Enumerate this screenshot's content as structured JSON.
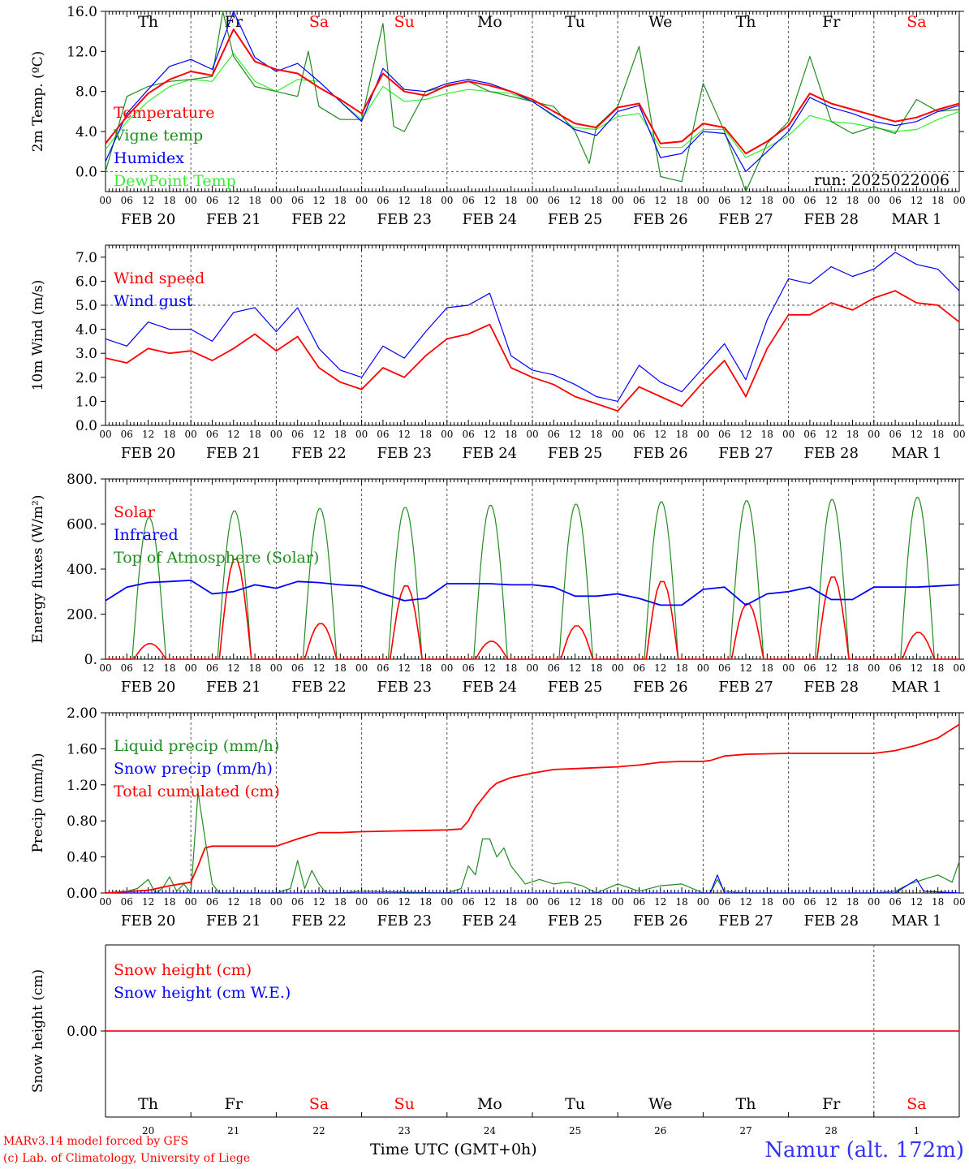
{
  "colors": {
    "red": "#ff0000",
    "green": "#228b22",
    "blue": "#0000ff",
    "lightgreen": "#33ee33",
    "axis": "#000000"
  },
  "days": [
    "Th",
    "Fr",
    "Sa",
    "Su",
    "Mo",
    "Tu",
    "We",
    "Th",
    "Fr",
    "Sa"
  ],
  "weekend_days": [
    "Sa",
    "Su"
  ],
  "dates": [
    "FEB 20",
    "FEB 21",
    "FEB 22",
    "FEB 23",
    "FEB 24",
    "FEB 25",
    "FEB 26",
    "FEB 27",
    "FEB 28",
    "MAR  1"
  ],
  "hour_ticks": [
    "00",
    "06",
    "12",
    "18"
  ],
  "day_numbers": [
    "20",
    "21",
    "22",
    "23",
    "24",
    "25",
    "26",
    "27",
    "28",
    "1"
  ],
  "footer": {
    "credit1": "MARv3.14 model forced by GFS",
    "credit2": "(c) Lab. of Climatology, University of Liege",
    "xlabel": "Time UTC (GMT+0h)",
    "station": "Namur (alt. 172m)"
  },
  "chart_data": [
    {
      "type": "line",
      "ylabel": "2m Temp. (ºC)",
      "ylim": [
        -2,
        16
      ],
      "yticks": [
        "0.0",
        "4.0",
        "8.0",
        "12.0",
        "16.0"
      ],
      "run_label": "run: 2025022006",
      "x_unit": "hours since FEB 20 00 UTC",
      "series": [
        {
          "name": "Temperature",
          "color": "#ff0000",
          "x": [
            0,
            6,
            12,
            18,
            24,
            30,
            36,
            42,
            48,
            54,
            60,
            66,
            72,
            78,
            84,
            90,
            96,
            102,
            108,
            114,
            120,
            126,
            132,
            138,
            144,
            150,
            156,
            162,
            168,
            174,
            180,
            186,
            192,
            198,
            204,
            210,
            216,
            222,
            228,
            234,
            240
          ],
          "values": [
            2.8,
            5.5,
            7.8,
            9.2,
            10.0,
            9.6,
            14.2,
            11.0,
            10.2,
            9.8,
            8.4,
            7.2,
            5.8,
            9.8,
            8.0,
            7.6,
            8.6,
            9.0,
            8.6,
            8.0,
            7.2,
            6.0,
            4.8,
            4.4,
            6.4,
            6.8,
            2.8,
            3.0,
            4.8,
            4.4,
            1.8,
            3.0,
            4.6,
            7.8,
            6.8,
            6.2,
            5.6,
            5.0,
            5.4,
            6.2,
            6.8
          ]
        },
        {
          "name": "Vigne temp",
          "color": "#228b22",
          "x": [
            0,
            6,
            12,
            18,
            24,
            30,
            33,
            36,
            42,
            48,
            54,
            57,
            60,
            66,
            72,
            78,
            81,
            84,
            90,
            96,
            102,
            108,
            114,
            120,
            126,
            132,
            136,
            138,
            144,
            150,
            156,
            162,
            168,
            174,
            180,
            186,
            192,
            198,
            204,
            210,
            216,
            222,
            228,
            234,
            240
          ],
          "values": [
            0.0,
            7.5,
            8.5,
            9.0,
            9.2,
            9.5,
            16.0,
            11.5,
            8.5,
            8.0,
            7.5,
            12.0,
            6.5,
            5.2,
            5.2,
            14.8,
            4.5,
            4.0,
            8.0,
            8.5,
            9.0,
            8.0,
            7.5,
            7.0,
            6.5,
            4.0,
            0.8,
            4.5,
            6.5,
            12.5,
            -0.5,
            -1.0,
            8.8,
            4.0,
            -2.0,
            2.8,
            5.0,
            11.5,
            5.0,
            3.8,
            4.5,
            3.8,
            7.2,
            6.0,
            6.2
          ]
        },
        {
          "name": "Humidex",
          "color": "#0000ff",
          "x": [
            0,
            6,
            12,
            18,
            24,
            30,
            36,
            42,
            48,
            54,
            60,
            66,
            72,
            78,
            84,
            90,
            96,
            102,
            108,
            114,
            120,
            126,
            132,
            138,
            144,
            150,
            156,
            162,
            168,
            174,
            180,
            186,
            192,
            198,
            204,
            210,
            216,
            222,
            228,
            234,
            240
          ],
          "values": [
            1.0,
            5.8,
            8.2,
            10.5,
            11.2,
            10.2,
            16.0,
            11.4,
            10.0,
            10.8,
            9.0,
            7.0,
            5.0,
            10.3,
            8.2,
            8.0,
            8.8,
            9.2,
            8.8,
            8.0,
            7.0,
            5.6,
            4.2,
            3.6,
            6.0,
            6.6,
            1.4,
            1.8,
            4.0,
            3.8,
            0.0,
            2.0,
            4.0,
            7.4,
            6.4,
            5.8,
            5.0,
            4.6,
            5.0,
            6.0,
            6.6
          ]
        },
        {
          "name": "DewPoint Temp",
          "color": "#33ee33",
          "x": [
            0,
            6,
            12,
            18,
            24,
            30,
            36,
            42,
            48,
            54,
            60,
            66,
            72,
            78,
            84,
            90,
            96,
            102,
            108,
            114,
            120,
            126,
            132,
            138,
            144,
            150,
            156,
            162,
            168,
            174,
            180,
            186,
            192,
            198,
            204,
            210,
            216,
            222,
            228,
            234,
            240
          ],
          "values": [
            2.2,
            5.0,
            7.0,
            8.5,
            9.2,
            9.0,
            11.8,
            9.0,
            8.0,
            9.2,
            9.0,
            7.0,
            5.2,
            8.5,
            7.0,
            7.2,
            7.8,
            8.2,
            8.0,
            7.8,
            7.0,
            5.5,
            4.4,
            4.2,
            5.5,
            5.8,
            2.4,
            2.4,
            4.2,
            4.2,
            1.4,
            2.4,
            3.6,
            5.6,
            5.0,
            4.8,
            4.4,
            4.0,
            4.2,
            5.2,
            6.0
          ]
        }
      ],
      "ref_line": 0
    },
    {
      "type": "line",
      "ylabel": "10m Wind (m/s)",
      "ylim": [
        0,
        7.5
      ],
      "yticks": [
        "0.0",
        "1.0",
        "2.0",
        "3.0",
        "4.0",
        "5.0",
        "6.0",
        "7.0"
      ],
      "x_unit": "hours since FEB 20 00 UTC",
      "series": [
        {
          "name": "Wind speed",
          "color": "#ff0000",
          "x": [
            0,
            6,
            12,
            18,
            24,
            30,
            36,
            42,
            48,
            54,
            60,
            66,
            72,
            78,
            84,
            90,
            96,
            102,
            108,
            114,
            120,
            126,
            132,
            138,
            144,
            150,
            156,
            162,
            168,
            174,
            180,
            186,
            192,
            198,
            204,
            210,
            216,
            222,
            228,
            234,
            240
          ],
          "values": [
            2.8,
            2.6,
            3.2,
            3.0,
            3.1,
            2.7,
            3.2,
            3.8,
            3.1,
            3.7,
            2.4,
            1.8,
            1.5,
            2.4,
            2.0,
            2.9,
            3.6,
            3.8,
            4.2,
            2.4,
            2.0,
            1.7,
            1.2,
            0.9,
            0.6,
            1.6,
            1.2,
            0.8,
            1.8,
            2.7,
            1.2,
            3.2,
            4.6,
            4.6,
            5.1,
            4.8,
            5.3,
            5.6,
            5.1,
            5.0,
            4.3
          ]
        },
        {
          "name": "Wind gust",
          "color": "#0000ff",
          "x": [
            0,
            6,
            12,
            18,
            24,
            30,
            36,
            42,
            48,
            54,
            60,
            66,
            72,
            78,
            84,
            90,
            96,
            102,
            108,
            114,
            120,
            126,
            132,
            138,
            144,
            150,
            156,
            162,
            168,
            174,
            180,
            186,
            192,
            198,
            204,
            210,
            216,
            222,
            228,
            234,
            240
          ],
          "values": [
            3.6,
            3.3,
            4.3,
            4.0,
            4.0,
            3.5,
            4.7,
            4.9,
            3.9,
            4.9,
            3.2,
            2.3,
            2.0,
            3.3,
            2.8,
            3.9,
            4.9,
            5.0,
            5.5,
            2.9,
            2.3,
            2.1,
            1.7,
            1.2,
            1.0,
            2.5,
            1.8,
            1.4,
            2.4,
            3.4,
            1.9,
            4.4,
            6.1,
            5.9,
            6.6,
            6.2,
            6.5,
            7.2,
            6.7,
            6.5,
            5.6
          ]
        }
      ],
      "ref_line": 5.0
    },
    {
      "type": "line",
      "ylabel": "Energy fluxes (W/m²)",
      "ylim": [
        0,
        800
      ],
      "yticks": [
        "0.",
        "200.",
        "400.",
        "600.",
        "800."
      ],
      "x_unit": "hours since FEB 20 00 UTC",
      "series": [
        {
          "name": "Solar",
          "color": "#ff0000",
          "peak_by_day": [
            70,
            450,
            160,
            330,
            80,
            150,
            350,
            250,
            370,
            120
          ]
        },
        {
          "name": "Infrared",
          "color": "#0000ff",
          "x": [
            0,
            6,
            12,
            18,
            24,
            30,
            36,
            42,
            48,
            54,
            60,
            66,
            72,
            78,
            84,
            90,
            96,
            102,
            108,
            114,
            120,
            126,
            132,
            138,
            144,
            150,
            156,
            162,
            168,
            174,
            180,
            186,
            192,
            198,
            204,
            210,
            216,
            222,
            228,
            234,
            240
          ],
          "values": [
            260,
            320,
            340,
            345,
            350,
            290,
            300,
            330,
            315,
            345,
            340,
            330,
            325,
            290,
            260,
            270,
            335,
            335,
            335,
            330,
            330,
            320,
            280,
            280,
            290,
            270,
            240,
            240,
            310,
            320,
            240,
            290,
            300,
            320,
            265,
            265,
            320,
            320,
            320,
            325,
            330
          ]
        },
        {
          "name": "Top of Atmosphere (Solar)",
          "color": "#228b22",
          "peak_by_day": [
            630,
            660,
            670,
            675,
            685,
            690,
            700,
            705,
            710,
            720
          ]
        }
      ],
      "daylight_hours": [
        7.5,
        17
      ]
    },
    {
      "type": "line",
      "ylabel": "Precip (mm/h)",
      "ylim": [
        0,
        2.0
      ],
      "yticks": [
        "0.00",
        "0.40",
        "0.80",
        "1.20",
        "1.60",
        "2.00"
      ],
      "x_unit": "hours since FEB 20 00 UTC",
      "series": [
        {
          "name": "Liquid precip (mm/h)",
          "color": "#228b22",
          "x": [
            0,
            6,
            9,
            12,
            14,
            16,
            18,
            20,
            22,
            24,
            26,
            28,
            30,
            32,
            34,
            36,
            48,
            52,
            54,
            56,
            58,
            60,
            62,
            64,
            66,
            72,
            96,
            100,
            102,
            104,
            106,
            108,
            110,
            112,
            114,
            118,
            122,
            126,
            130,
            134,
            138,
            144,
            150,
            156,
            162,
            168,
            170,
            172,
            174,
            180,
            216,
            222,
            226,
            230,
            234,
            238,
            240
          ],
          "values": [
            0,
            0.02,
            0.05,
            0.15,
            0,
            0.05,
            0.18,
            0.02,
            0.1,
            0,
            1.12,
            0.6,
            0.1,
            0,
            0,
            0,
            0,
            0.05,
            0.36,
            0.05,
            0.25,
            0.1,
            0,
            0,
            0,
            0.02,
            0,
            0.05,
            0.3,
            0.2,
            0.6,
            0.6,
            0.4,
            0.5,
            0.3,
            0.1,
            0.15,
            0.1,
            0.12,
            0.08,
            0,
            0.1,
            0.02,
            0.08,
            0.1,
            0,
            0,
            0.15,
            0.02,
            0,
            0,
            0.02,
            0.1,
            0.15,
            0.2,
            0.12,
            0.35
          ]
        },
        {
          "name": "Snow precip (mm/h)",
          "color": "#0000ff",
          "x": [
            0,
            168,
            170,
            172,
            174,
            180,
            222,
            226,
            228,
            230,
            240
          ],
          "values": [
            0,
            0,
            0,
            0.2,
            0,
            0,
            0,
            0.1,
            0.15,
            0.02,
            0
          ]
        },
        {
          "name": "Total cumulated (cm)",
          "color": "#ff0000",
          "x": [
            0,
            12,
            18,
            24,
            26,
            28,
            30,
            36,
            48,
            54,
            60,
            66,
            72,
            84,
            96,
            100,
            102,
            104,
            106,
            108,
            110,
            114,
            120,
            126,
            132,
            138,
            144,
            150,
            156,
            162,
            168,
            170,
            174,
            180,
            192,
            204,
            216,
            222,
            228,
            234,
            240
          ],
          "values": [
            0,
            0.03,
            0.08,
            0.12,
            0.3,
            0.5,
            0.52,
            0.52,
            0.52,
            0.6,
            0.67,
            0.67,
            0.68,
            0.69,
            0.7,
            0.71,
            0.8,
            0.95,
            1.05,
            1.15,
            1.22,
            1.28,
            1.33,
            1.37,
            1.38,
            1.39,
            1.4,
            1.42,
            1.45,
            1.46,
            1.46,
            1.47,
            1.52,
            1.54,
            1.55,
            1.55,
            1.55,
            1.58,
            1.64,
            1.72,
            1.87
          ]
        }
      ]
    },
    {
      "type": "line",
      "ylabel": "Snow height (cm)",
      "yticks": [
        "0.00"
      ],
      "x_unit": "hours since FEB 20 00 UTC",
      "series": [
        {
          "name": "Snow height (cm)",
          "color": "#ff0000",
          "x": [
            0,
            240
          ],
          "values": [
            0,
            0
          ]
        },
        {
          "name": "Snow height (cm W.E.)",
          "color": "#0000ff",
          "x": [
            0,
            240
          ],
          "values": [
            0,
            0
          ]
        }
      ]
    }
  ]
}
